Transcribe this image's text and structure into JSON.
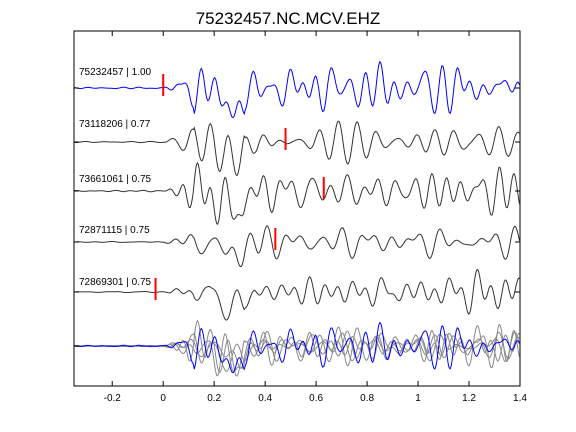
{
  "chart_data": {
    "type": "line",
    "title": "75232457.NC.MCV.EHZ",
    "xlabel": "",
    "ylabel": "",
    "xlim": [
      -0.35,
      1.4
    ],
    "xticks": [
      -0.2,
      0,
      0.2,
      0.4,
      0.6,
      0.8,
      1,
      1.2,
      1.4
    ],
    "xtick_labels": [
      "-0.2",
      "0",
      "0.2",
      "0.4",
      "0.6",
      "0.8",
      "1",
      "1.2",
      "1.4"
    ],
    "grid": false,
    "traces": [
      {
        "id": "75232457",
        "label": "75232457 | 1.00",
        "correlation": 1.0,
        "color": "#0000ff",
        "pick_time": 0.0,
        "amplitude": 1.0,
        "seed": 1
      },
      {
        "id": "73118206",
        "label": "73118206 | 0.77",
        "correlation": 0.77,
        "color": "#333333",
        "pick_time": 0.48,
        "amplitude": 1.0,
        "seed": 2
      },
      {
        "id": "73661061",
        "label": "73661061 | 0.75",
        "correlation": 0.75,
        "color": "#333333",
        "pick_time": 0.63,
        "amplitude": 1.0,
        "seed": 3
      },
      {
        "id": "72871115",
        "label": "72871115 | 0.75",
        "correlation": 0.75,
        "color": "#333333",
        "pick_time": 0.44,
        "amplitude": 0.75,
        "seed": 4
      },
      {
        "id": "72869301",
        "label": "72869301 | 0.75",
        "correlation": 0.75,
        "color": "#333333",
        "pick_time": -0.03,
        "amplitude": 0.8,
        "seed": 5
      }
    ],
    "pick_color": "#ff0000",
    "stack": {
      "colors": [
        "#888888",
        "#888888",
        "#888888",
        "#888888",
        "#000000",
        "#0000ff"
      ]
    }
  }
}
